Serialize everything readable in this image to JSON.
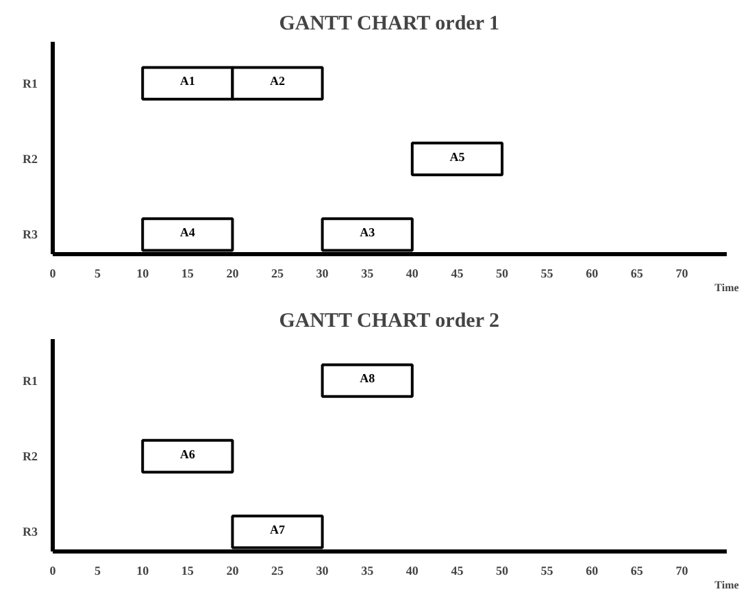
{
  "chart_data": [
    {
      "type": "bar",
      "orientation": "horizontal",
      "title": "GANTT CHART order 1",
      "xlabel": "Time",
      "categories": [
        "R1",
        "R2",
        "R3"
      ],
      "xlim": [
        0,
        75
      ],
      "xticks": [
        0,
        5,
        10,
        15,
        20,
        25,
        30,
        35,
        40,
        45,
        50,
        55,
        60,
        65,
        70
      ],
      "grid": false,
      "series": [
        {
          "name": "A1",
          "color": "#ffffff",
          "base": [
            10,
            null,
            null
          ],
          "values": [
            10,
            null,
            null
          ]
        },
        {
          "name": "A2",
          "color": "#ffffff",
          "base": [
            20,
            null,
            null
          ],
          "values": [
            10,
            null,
            null
          ]
        },
        {
          "name": "A3",
          "color": "#ffffff",
          "base": [
            null,
            null,
            30
          ],
          "values": [
            null,
            null,
            10
          ]
        },
        {
          "name": "A4",
          "color": "#ffffff",
          "base": [
            null,
            null,
            10
          ],
          "values": [
            null,
            null,
            10
          ]
        },
        {
          "name": "A5",
          "color": "#ffffff",
          "base": [
            null,
            40,
            null
          ],
          "values": [
            null,
            10,
            null
          ]
        }
      ]
    },
    {
      "type": "bar",
      "orientation": "horizontal",
      "title": "GANTT CHART order 2",
      "xlabel": "Time",
      "categories": [
        "R1",
        "R2",
        "R3"
      ],
      "xlim": [
        0,
        75
      ],
      "xticks": [
        0,
        5,
        10,
        15,
        20,
        25,
        30,
        35,
        40,
        45,
        50,
        55,
        60,
        65,
        70
      ],
      "grid": false,
      "series": [
        {
          "name": "A8",
          "color": "#ffffff",
          "base": [
            30,
            null,
            null
          ],
          "values": [
            10,
            null,
            null
          ]
        },
        {
          "name": "A6",
          "color": "#ffffff",
          "base": [
            null,
            10,
            null
          ],
          "values": [
            null,
            10,
            null
          ]
        },
        {
          "name": "A7",
          "color": "#ffffff",
          "base": [
            null,
            null,
            20
          ],
          "values": [
            null,
            null,
            10
          ]
        }
      ]
    }
  ]
}
